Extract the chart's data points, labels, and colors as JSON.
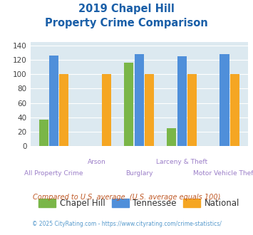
{
  "title_line1": "2019 Chapel Hill",
  "title_line2": "Property Crime Comparison",
  "categories": [
    "All Property Crime",
    "Arson",
    "Burglary",
    "Larceny & Theft",
    "Motor Vehicle Theft"
  ],
  "chapel_hill": [
    37,
    0,
    116,
    25,
    0
  ],
  "tennessee": [
    126,
    0,
    128,
    125,
    128
  ],
  "national": [
    100,
    100,
    100,
    100,
    100
  ],
  "color_chapel_hill": "#7ab648",
  "color_tennessee": "#4f8fda",
  "color_national": "#f5a623",
  "ylim": [
    0,
    145
  ],
  "yticks": [
    0,
    20,
    40,
    60,
    80,
    100,
    120,
    140
  ],
  "bg_color": "#dce9f0",
  "title_color": "#1a5fa8",
  "xlabel_color": "#9b7ec8",
  "footer_text": "Compared to U.S. average. (U.S. average equals 100)",
  "copyright_text": "© 2025 CityRating.com - https://www.cityrating.com/crime-statistics/",
  "footer_color": "#c05a28",
  "copyright_color": "#5599cc",
  "group_labels_top": [
    "",
    "Arson",
    "",
    "Larceny & Theft",
    ""
  ],
  "group_labels_bot": [
    "All Property Crime",
    "",
    "Burglary",
    "",
    "Motor Vehicle Theft"
  ]
}
